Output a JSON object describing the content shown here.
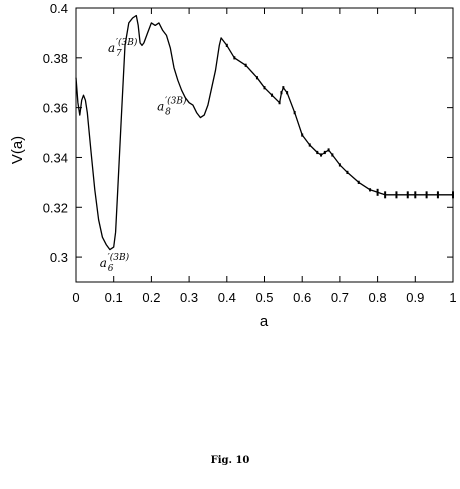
{
  "caption": "Fig. 10",
  "chart_data": {
    "type": "line",
    "xlabel": "a",
    "ylabel": "V(a)",
    "xlim": [
      0,
      1
    ],
    "ylim": [
      0.29,
      0.4
    ],
    "x_ticks": [
      "0",
      "0.1",
      "0.2",
      "0.3",
      "0.4",
      "0.5",
      "0.6",
      "0.7",
      "0.8",
      "0.9",
      "1"
    ],
    "y_ticks": [
      "0.3",
      "0.32",
      "0.34",
      "0.36",
      "0.38",
      "0.4"
    ],
    "grid": false,
    "series": [
      {
        "x": [
          0.0,
          0.005,
          0.01,
          0.015,
          0.02,
          0.025,
          0.03,
          0.04,
          0.05,
          0.06,
          0.07,
          0.08,
          0.09,
          0.1,
          0.105,
          0.11,
          0.12,
          0.13,
          0.14,
          0.15,
          0.16,
          0.165,
          0.17,
          0.175,
          0.18,
          0.19,
          0.2,
          0.21,
          0.22,
          0.23,
          0.24,
          0.25,
          0.26,
          0.27,
          0.28,
          0.29,
          0.3,
          0.31,
          0.32,
          0.33,
          0.34,
          0.35,
          0.36,
          0.37,
          0.38,
          0.385,
          0.39,
          0.4,
          0.42,
          0.45,
          0.48,
          0.5,
          0.52,
          0.54,
          0.545,
          0.55,
          0.56,
          0.58,
          0.6,
          0.62,
          0.64,
          0.65,
          0.66,
          0.67,
          0.68,
          0.7,
          0.72,
          0.75,
          0.78,
          0.8,
          0.82,
          0.85,
          0.88,
          0.9,
          0.93,
          0.96,
          1.0
        ],
        "y": [
          0.372,
          0.362,
          0.357,
          0.363,
          0.365,
          0.363,
          0.358,
          0.342,
          0.327,
          0.315,
          0.308,
          0.305,
          0.303,
          0.304,
          0.31,
          0.325,
          0.355,
          0.385,
          0.394,
          0.396,
          0.397,
          0.393,
          0.386,
          0.385,
          0.386,
          0.39,
          0.394,
          0.393,
          0.394,
          0.391,
          0.389,
          0.384,
          0.376,
          0.371,
          0.367,
          0.364,
          0.362,
          0.361,
          0.358,
          0.356,
          0.357,
          0.361,
          0.368,
          0.375,
          0.385,
          0.388,
          0.387,
          0.385,
          0.38,
          0.377,
          0.372,
          0.368,
          0.365,
          0.362,
          0.366,
          0.368,
          0.366,
          0.358,
          0.349,
          0.345,
          0.342,
          0.341,
          0.342,
          0.343,
          0.341,
          0.337,
          0.334,
          0.33,
          0.327,
          0.326,
          0.325,
          0.325,
          0.325,
          0.325,
          0.325,
          0.325,
          0.325
        ]
      }
    ],
    "annotations": [
      {
        "main": "a",
        "sup": "′(3B)",
        "sub": "6",
        "x": 0.1,
        "y": 0.3
      },
      {
        "main": "a",
        "sup": "′(3B)",
        "sub": "7",
        "x": 0.175,
        "y": 0.384
      },
      {
        "main": "a",
        "sup": "′(3B)",
        "sub": "8",
        "x": 0.3,
        "y": 0.362
      }
    ]
  }
}
